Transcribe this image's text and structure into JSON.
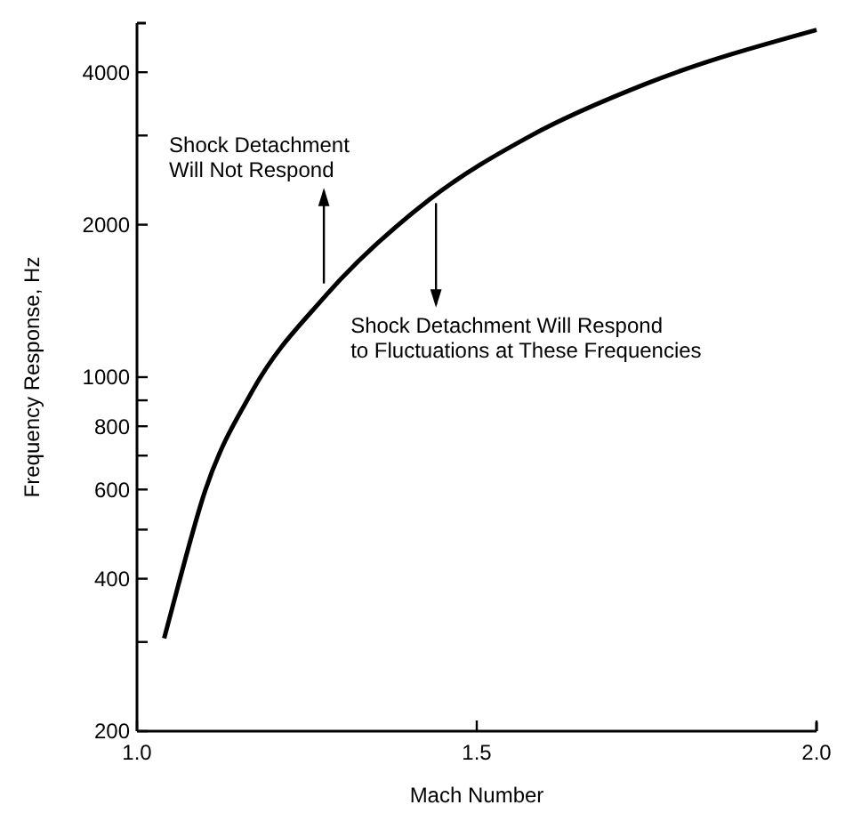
{
  "chart_data": {
    "type": "line",
    "xlabel": "Mach Number",
    "ylabel": "Frequency Response, Hz",
    "x": [
      1.04,
      1.06,
      1.1,
      1.17,
      1.275,
      1.43,
      1.58,
      1.75,
      2.0
    ],
    "series": [
      {
        "color": "#000000",
        "values": [
          305,
          385,
          595,
          940,
          1435,
          2240,
          3000,
          3800,
          4850
        ]
      }
    ],
    "xlim": [
      1,
      2
    ],
    "xticks": [
      {
        "value": 1,
        "label": "1.0"
      },
      1.5,
      {
        "value": 2,
        "label": "2.0"
      }
    ],
    "ylim": [
      200,
      5000
    ],
    "log": true,
    "yticks": [
      200,
      {
        "value": 300,
        "label": null
      },
      400,
      {
        "value": 500,
        "label": null
      },
      600,
      {
        "value": 700,
        "label": null
      },
      800,
      {
        "value": 900,
        "label": null
      },
      1000,
      2000,
      {
        "value": 3000,
        "label": null
      },
      4000
    ],
    "grid": false,
    "marker": "none",
    "line_style": "solid",
    "annotations": [
      {
        "text": "Shock Detachment\nWill Not Respond",
        "x": 1.275,
        "y": 1435
      },
      {
        "text": "Shock Detachment Will Respond\nto Fluctuations at These Frequencies",
        "x": 1.44,
        "y": 2260
      }
    ]
  }
}
